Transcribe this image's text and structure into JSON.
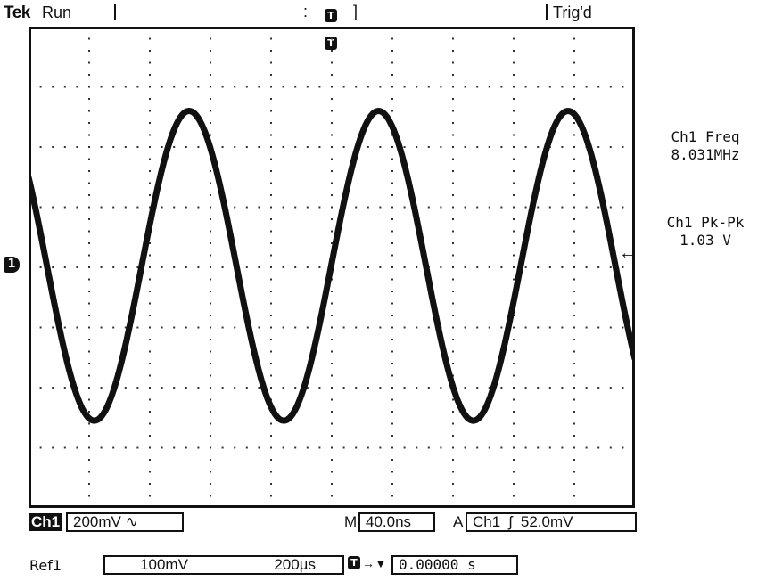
{
  "header": {
    "brand": "Tek",
    "run_state": "Run",
    "trigger_status": "Trig'd",
    "colon_mark": ":",
    "bracket_mark": "]",
    "trigger_marker": "T"
  },
  "channel_marker": "1",
  "measurements": {
    "freq_label": "Ch1 Freq",
    "freq_value": "8.031MHz",
    "pkpk_label": "Ch1 Pk-Pk",
    "pkpk_value": "1.03 V"
  },
  "bottom": {
    "channel_label": "Ch1",
    "channel_scale": "200mV",
    "coupling_symbol": "∿",
    "timebase_prefix": "M",
    "timebase": "40.0ns",
    "trigger_prefix": "A",
    "trigger_source": "Ch1",
    "trigger_slope_symbol": "ʃ",
    "trigger_level": "52.0mV"
  },
  "reference": {
    "label": "Ref1",
    "volts_per_div": "100mV",
    "time_per_div": "200µs",
    "position_arrow": "→▼",
    "offset": "0.00000 s"
  },
  "waveform": {
    "cycles_on_screen": 3.2,
    "peak_divisions": 2.6,
    "trough_divisions": -2.55,
    "start_phase_divisions": 1.5
  },
  "colors": {
    "trace": "#111111",
    "background": "#ffffff",
    "grid_dots": "#333333"
  }
}
